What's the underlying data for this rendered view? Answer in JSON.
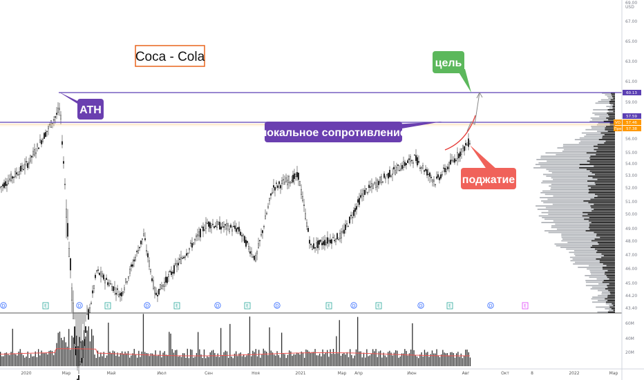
{
  "chart_data": {
    "type": "candlestick",
    "title": "Coca - Cola",
    "currency": "USD",
    "y_ticks": [
      "69.00",
      "67.00",
      "65.00",
      "63.00",
      "61.00",
      "59.00",
      "56.00",
      "55.00",
      "54.00",
      "53.00",
      "52.00",
      "51.00",
      "50.00",
      "49.00",
      "48.00",
      "47.00",
      "46.00",
      "45.00",
      "44.20",
      "43.40"
    ],
    "x_ticks": [
      "2020",
      "Мар",
      "Май",
      "Июл",
      "Сен",
      "Ноя",
      "2021",
      "Мар",
      "Апр",
      "Июн",
      "Авг",
      "Окт",
      "8",
      "2022",
      "Мар"
    ],
    "price_labels": [
      {
        "text": "60.13",
        "color": "#5b3fb3"
      },
      {
        "text": "57.59",
        "color": "#5b3fb3"
      },
      {
        "text": "57.46",
        "color": "#ff9800"
      },
      {
        "text": "57.38",
        "color": "#ff9800"
      }
    ],
    "price_label_prefixes": [
      "VO",
      "Пре"
    ],
    "volume_ticks": [
      "60M",
      "40M",
      "20M"
    ],
    "horizontal_lines": [
      60.13,
      57.38
    ],
    "price_series_keypoints": [
      {
        "date": "2019-12",
        "price": 53.5
      },
      {
        "date": "2020-01",
        "price": 55.5
      },
      {
        "date": "2020-02-20",
        "price": 60.13
      },
      {
        "date": "2020-03-23",
        "price": 37.5
      },
      {
        "date": "2020-04",
        "price": 46.5
      },
      {
        "date": "2020-05-20",
        "price": 44.5
      },
      {
        "date": "2020-06-08",
        "price": 49.5
      },
      {
        "date": "2020-06-25",
        "price": 44.5
      },
      {
        "date": "2020-08",
        "price": 50.5
      },
      {
        "date": "2020-09",
        "price": 50.0
      },
      {
        "date": "2020-10-30",
        "price": 47.5
      },
      {
        "date": "2020-11-20",
        "price": 53.5
      },
      {
        "date": "2020-12-20",
        "price": 54.5
      },
      {
        "date": "2021-01-28",
        "price": 48.5
      },
      {
        "date": "2021-03-01",
        "price": 49.5
      },
      {
        "date": "2021-04",
        "price": 53.0
      },
      {
        "date": "2021-05",
        "price": 54.5
      },
      {
        "date": "2021-06",
        "price": 56.0
      },
      {
        "date": "2021-07",
        "price": 54.0
      },
      {
        "date": "2021-08",
        "price": 57.4
      }
    ],
    "annotations": [
      {
        "text": "ATH",
        "color": "#6a3fb0"
      },
      {
        "text": "локальное сопротивление",
        "color": "#6a3fb0"
      },
      {
        "text": "цель",
        "color": "#5cb85c"
      },
      {
        "text": "поджатие",
        "color": "#f0625a"
      }
    ],
    "events": [
      "D",
      "E",
      "D",
      "E",
      "D",
      "E",
      "D",
      "E",
      "D",
      "E",
      "D",
      "E",
      "D",
      "E",
      "D",
      "E"
    ],
    "grid": false,
    "legend": "none"
  }
}
